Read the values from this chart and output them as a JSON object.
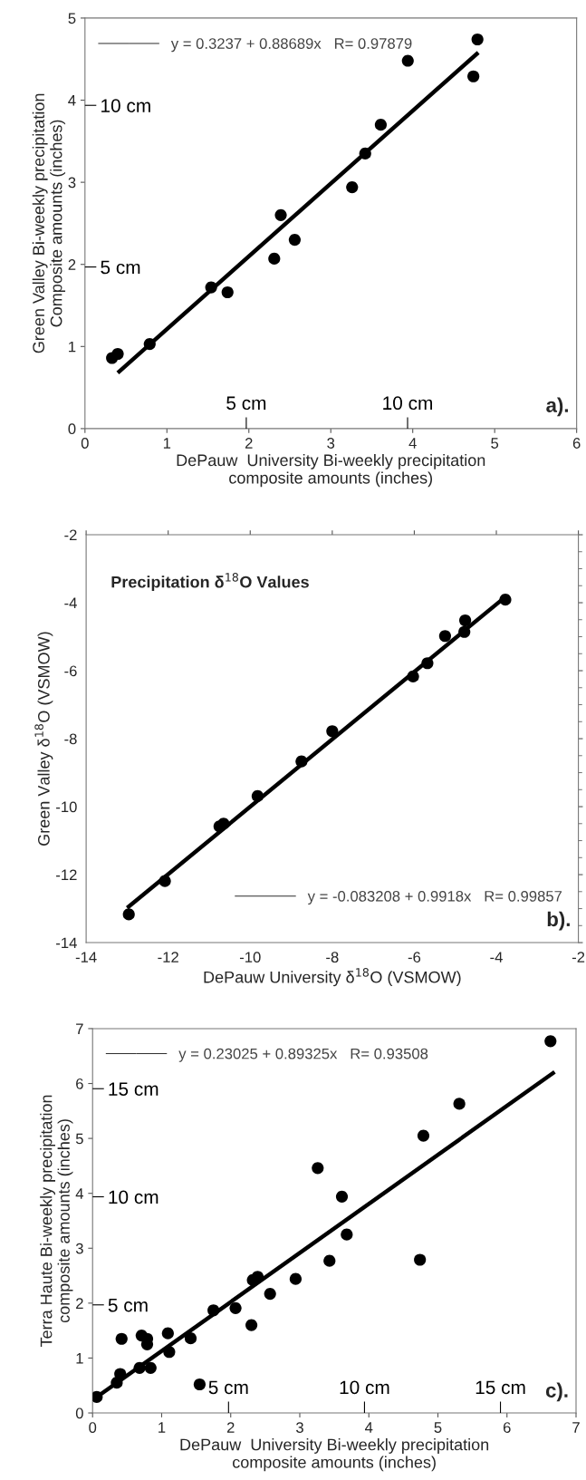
{
  "chart_data": [
    {
      "type": "scatter",
      "xlabel": "DePauw  University Bi-weekly precipitation\ncomposite amounts (inches)",
      "ylabel": "Green Valley Bi-weekly precipitation\nComposite amounts (inches)",
      "xlim": [
        0,
        6
      ],
      "xticks": [
        0,
        1,
        2,
        3,
        4,
        5,
        6
      ],
      "ylim": [
        0,
        5
      ],
      "yticks": [
        0,
        1,
        2,
        3,
        4,
        5
      ],
      "grid": false,
      "legend": "top left",
      "x2lim": [
        0,
        15.24
      ],
      "x2ticks": [
        {
          "value": 5,
          "label": "5 cm"
        },
        {
          "value": 10,
          "label": "10 cm"
        }
      ],
      "y2lim": [
        0,
        12.7
      ],
      "y2ticks": [
        {
          "value": 5,
          "label": "5 cm"
        },
        {
          "value": 10,
          "label": "10 cm"
        }
      ],
      "series": [
        {
          "marker": "circle",
          "color": "#000000",
          "x": [
            0.33,
            0.4,
            0.79,
            1.54,
            1.74,
            2.31,
            2.39,
            2.56,
            3.26,
            3.42,
            3.61,
            3.94,
            4.74,
            4.79
          ],
          "values": [
            0.86,
            0.91,
            1.03,
            1.72,
            1.66,
            2.07,
            2.6,
            2.3,
            2.94,
            3.35,
            3.7,
            4.48,
            4.29,
            4.74
          ]
        },
        {
          "type": "line",
          "name": "y = 0.3237 + 0.88689x   R= 0.97879",
          "color": "#000000",
          "line_style": "solid",
          "x": [
            0.4,
            4.8
          ],
          "values": [
            0.68,
            4.58
          ]
        }
      ],
      "annotations": [
        "a)."
      ]
    },
    {
      "type": "scatter",
      "title": "Precipitation δ$^{18}$O Values",
      "xlabel": "DePauw University δ$^{18}$O (VSMOW)",
      "ylabel": "Green Valley δ$^{18}$O (VSMOW)",
      "xlim": [
        -14,
        -2
      ],
      "xticks": [
        -14,
        -12,
        -10,
        -8,
        -6,
        -4,
        -2
      ],
      "ylim": [
        -14,
        -2
      ],
      "yticks": [
        -14,
        -12,
        -10,
        -8,
        -6,
        -4,
        -2
      ],
      "grid": false,
      "legend": "bottom right",
      "series": [
        {
          "marker": "circle",
          "color": "#000000",
          "x": [
            -12.96,
            -12.08,
            -10.75,
            -10.65,
            -9.82,
            -8.75,
            -8.0,
            -6.03,
            -5.68,
            -5.25,
            -4.76,
            -4.78,
            -3.78
          ],
          "values": [
            -13.17,
            -12.19,
            -10.58,
            -10.5,
            -9.69,
            -8.67,
            -7.78,
            -6.17,
            -5.78,
            -4.98,
            -4.52,
            -4.86,
            -3.91
          ]
        },
        {
          "type": "line",
          "name": "y = -0.083208 + 0.9918x   R= 0.99857",
          "color": "#000000",
          "line_style": "solid",
          "x": [
            -13.0,
            -3.8
          ],
          "values": [
            -12.98,
            -3.85
          ]
        }
      ],
      "annotations": [
        "b)."
      ]
    },
    {
      "type": "scatter",
      "xlabel": "DePauw  University Bi-weekly precipitation\ncomposite amounts (inches)",
      "ylabel": "Terra Haute Bi-weekly precipitation\ncomposite amounts (inches)",
      "xlim": [
        0,
        7
      ],
      "xticks": [
        0,
        1,
        2,
        3,
        4,
        5,
        6,
        7
      ],
      "ylim": [
        0,
        7
      ],
      "yticks": [
        0,
        1,
        2,
        3,
        4,
        5,
        6,
        7
      ],
      "grid": false,
      "legend": "top left",
      "x2lim": [
        0,
        17.78
      ],
      "x2ticks": [
        {
          "value": 5,
          "label": "5 cm"
        },
        {
          "value": 10,
          "label": "10 cm"
        },
        {
          "value": 15,
          "label": "15 cm"
        }
      ],
      "y2lim": [
        0,
        17.78
      ],
      "y2ticks": [
        {
          "value": 5,
          "label": "5 cm"
        },
        {
          "value": 10,
          "label": "10 cm"
        },
        {
          "value": 15,
          "label": "15 cm"
        }
      ],
      "series": [
        {
          "marker": "circle",
          "color": "#000000",
          "x": [
            0.06,
            0.35,
            0.4,
            0.42,
            0.68,
            0.71,
            0.79,
            0.79,
            0.84,
            1.09,
            1.11,
            1.42,
            1.55,
            1.75,
            2.07,
            2.3,
            2.32,
            2.39,
            2.57,
            2.94,
            3.26,
            3.43,
            3.61,
            3.68,
            4.74,
            4.79,
            5.31,
            6.63
          ],
          "values": [
            0.29,
            0.55,
            0.71,
            1.35,
            0.82,
            1.41,
            1.35,
            1.25,
            0.82,
            1.45,
            1.11,
            1.36,
            0.52,
            1.87,
            1.91,
            1.6,
            2.42,
            2.48,
            2.17,
            2.44,
            4.46,
            2.77,
            3.94,
            3.25,
            2.79,
            5.05,
            5.63,
            6.77
          ]
        },
        {
          "type": "line",
          "name": "y = 0.23025 + 0.89325x   R= 0.93508",
          "color": "#000000",
          "line_style": "solid",
          "x": [
            0.05,
            6.69
          ],
          "values": [
            0.28,
            6.21
          ]
        }
      ],
      "annotations": [
        "c)."
      ]
    }
  ]
}
